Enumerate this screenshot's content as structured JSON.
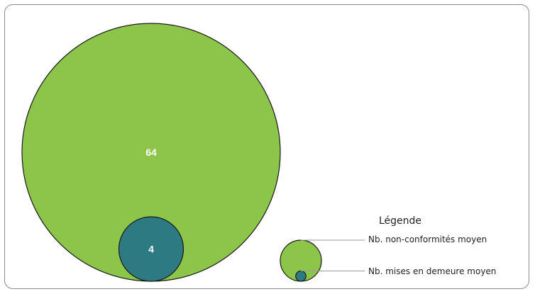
{
  "chart_data": {
    "type": "nested-bubble",
    "title": "",
    "series": [
      {
        "name": "Nb. non-conformités moyen",
        "value": 64,
        "color": "#8dc54b"
      },
      {
        "name": "Nb. mises en demeure moyen",
        "value": 4,
        "color": "#2e7a83"
      }
    ],
    "value_labels": [
      "64",
      "4"
    ],
    "legend": {
      "title": "Légende",
      "placement": "bottom-right",
      "items": [
        "Nb. non-conformités moyen",
        "Nb. mises en demeure moyen"
      ]
    }
  }
}
